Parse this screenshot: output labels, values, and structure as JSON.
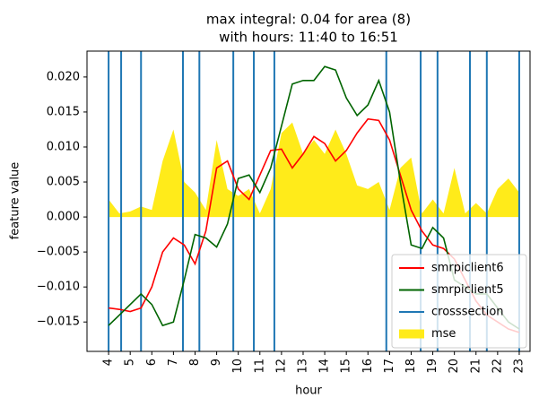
{
  "chart_data": {
    "type": "line",
    "title": "max integral: 0.04 for area (8)",
    "subtitle": "with hours: 11:40 to 16:51",
    "x_label": "hour",
    "y_label": "feature value",
    "x": [
      4,
      4.5,
      5,
      5.5,
      6,
      6.5,
      7,
      7.5,
      8,
      8.5,
      9,
      9.5,
      10,
      10.5,
      11,
      11.5,
      12,
      12.5,
      13,
      13.5,
      14,
      14.5,
      15,
      15.5,
      16,
      16.5,
      17,
      17.5,
      18,
      18.5,
      19,
      19.5,
      20,
      20.5,
      21,
      21.5,
      22,
      22.5,
      23
    ],
    "series": [
      {
        "name": "smrpiclient6",
        "color": "#ff0000",
        "values": [
          -0.013,
          -0.0132,
          -0.0135,
          -0.013,
          -0.01,
          -0.005,
          -0.003,
          -0.004,
          -0.0067,
          -0.002,
          0.007,
          0.008,
          0.004,
          0.0025,
          0.006,
          0.0095,
          0.0097,
          0.007,
          0.009,
          0.0115,
          0.0105,
          0.008,
          0.0095,
          0.012,
          0.014,
          0.0138,
          0.011,
          0.006,
          0.001,
          -0.002,
          -0.004,
          -0.0045,
          -0.006,
          -0.009,
          -0.012,
          -0.014,
          -0.015,
          -0.016,
          -0.0165
        ]
      },
      {
        "name": "smrpiclient5",
        "color": "#006400",
        "values": [
          -0.0155,
          -0.014,
          -0.0125,
          -0.011,
          -0.0125,
          -0.0155,
          -0.015,
          -0.009,
          -0.0025,
          -0.003,
          -0.0043,
          -0.001,
          0.0055,
          0.006,
          0.0035,
          0.007,
          0.013,
          0.019,
          0.0195,
          0.0195,
          0.0215,
          0.021,
          0.017,
          0.0145,
          0.016,
          0.0195,
          0.015,
          0.005,
          -0.004,
          -0.0045,
          -0.0015,
          -0.003,
          -0.009,
          -0.01,
          -0.011,
          -0.011,
          -0.013,
          -0.015,
          -0.016
        ]
      }
    ],
    "crosssection": {
      "name": "crosssection",
      "color": "#1f77b4",
      "x": [
        4,
        4.58,
        5.5,
        7.44,
        8.2,
        9.77,
        10.72,
        11.67,
        16.85,
        18.44,
        19.22,
        20.72,
        21.5,
        23
      ]
    },
    "area": {
      "name": "mse",
      "color": "#ffeb1a",
      "values": [
        0.0025,
        0.0005,
        0.0008,
        0.0015,
        0.001,
        0.008,
        0.0125,
        0.005,
        0.0035,
        0.001,
        0.011,
        0.004,
        0.003,
        0.004,
        0.0005,
        0.004,
        0.012,
        0.0135,
        0.009,
        0.011,
        0.009,
        0.0125,
        0.009,
        0.0045,
        0.004,
        0.005,
        0.001,
        0.007,
        0.0085,
        0.0005,
        0.0025,
        0.0005,
        0.007,
        0.0005,
        0.002,
        0.0005,
        0.004,
        0.0055,
        0.0035
      ]
    },
    "xlim": [
      3.0,
      23.5
    ],
    "ylim": [
      -0.0192,
      0.0237
    ],
    "xticks": [
      4,
      5,
      6,
      7,
      8,
      9,
      10,
      11,
      12,
      13,
      14,
      15,
      16,
      17,
      18,
      19,
      20,
      21,
      22,
      23
    ],
    "yticks": [
      {
        "value": -0.015,
        "label": "−0.015"
      },
      {
        "value": -0.01,
        "label": "−0.010"
      },
      {
        "value": -0.005,
        "label": "−0.005"
      },
      {
        "value": 0,
        "label": "0.000"
      },
      {
        "value": 0.005,
        "label": "0.005"
      },
      {
        "value": 0.01,
        "label": "0.010"
      },
      {
        "value": 0.015,
        "label": "0.015"
      },
      {
        "value": 0.02,
        "label": "0.020"
      }
    ],
    "legend": "lower right"
  }
}
